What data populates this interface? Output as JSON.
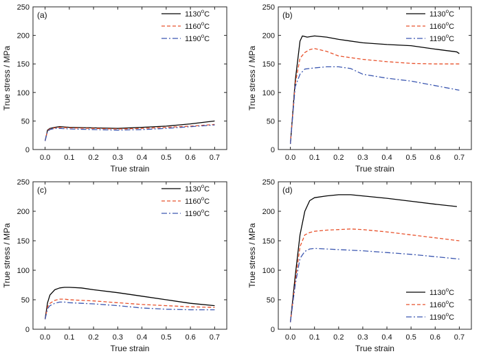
{
  "colors": {
    "s1130": "#000000",
    "s1160": "#e8502a",
    "s1190": "#3a56b0",
    "axis": "#222222"
  },
  "chart_data": [
    {
      "type": "line",
      "panel_label": "(a)",
      "xlabel": "True strain",
      "ylabel": "True stress / MPa",
      "xlim": [
        -0.05,
        0.75
      ],
      "ylim": [
        0,
        250
      ],
      "xticks": [
        0.0,
        0.1,
        0.2,
        0.3,
        0.4,
        0.5,
        0.6,
        0.7
      ],
      "xtick_labels": [
        "0.0",
        "0.1",
        "0.2",
        "0.3",
        "0.4",
        "0.5",
        "0.6",
        "0.7"
      ],
      "yticks": [
        0,
        50,
        100,
        150,
        200,
        250
      ],
      "ytick_labels": [
        "0",
        "50",
        "100",
        "150",
        "200",
        "250"
      ],
      "legend": "top-right",
      "grid": false,
      "series": [
        {
          "name": "1130°C",
          "x": [
            0.0,
            0.01,
            0.02,
            0.04,
            0.06,
            0.1,
            0.2,
            0.3,
            0.4,
            0.5,
            0.6,
            0.7
          ],
          "y": [
            15,
            34,
            37,
            39,
            40,
            39,
            38,
            37,
            39,
            41,
            45,
            50
          ]
        },
        {
          "name": "1160°C",
          "x": [
            0.0,
            0.01,
            0.02,
            0.04,
            0.06,
            0.1,
            0.2,
            0.3,
            0.4,
            0.5,
            0.6,
            0.7
          ],
          "y": [
            15,
            33,
            36,
            38,
            39,
            38,
            37,
            36,
            37,
            39,
            41,
            44
          ]
        },
        {
          "name": "1190°C",
          "x": [
            0.0,
            0.01,
            0.02,
            0.04,
            0.06,
            0.1,
            0.2,
            0.3,
            0.4,
            0.5,
            0.6,
            0.7
          ],
          "y": [
            15,
            32,
            35,
            37,
            37,
            36,
            35,
            34,
            35,
            37,
            40,
            43
          ]
        }
      ]
    },
    {
      "type": "line",
      "panel_label": "(b)",
      "xlabel": "True strain",
      "ylabel": "True stress / MPa",
      "xlim": [
        -0.05,
        0.75
      ],
      "ylim": [
        0,
        250
      ],
      "xticks": [
        0.0,
        0.1,
        0.2,
        0.3,
        0.4,
        0.5,
        0.6,
        0.7
      ],
      "xtick_labels": [
        "0.0",
        "0.1",
        "0.2",
        "0.3",
        "0.4",
        "0.5",
        "0.6",
        "0.7"
      ],
      "yticks": [
        0,
        50,
        100,
        150,
        200,
        250
      ],
      "ytick_labels": [
        "0",
        "50",
        "100",
        "150",
        "200",
        "250"
      ],
      "legend": "top-right",
      "grid": false,
      "series": [
        {
          "name": "1130°C",
          "x": [
            0.0,
            0.02,
            0.04,
            0.05,
            0.07,
            0.1,
            0.15,
            0.2,
            0.3,
            0.4,
            0.5,
            0.6,
            0.69,
            0.7
          ],
          "y": [
            10,
            120,
            190,
            199,
            197,
            199,
            197,
            193,
            187,
            184,
            182,
            176,
            171,
            168
          ]
        },
        {
          "name": "1160°C",
          "x": [
            0.0,
            0.02,
            0.04,
            0.06,
            0.08,
            0.1,
            0.15,
            0.2,
            0.3,
            0.4,
            0.5,
            0.6,
            0.7
          ],
          "y": [
            10,
            115,
            160,
            170,
            175,
            177,
            172,
            164,
            158,
            154,
            151,
            150,
            150
          ]
        },
        {
          "name": "1190°C",
          "x": [
            0.0,
            0.02,
            0.04,
            0.06,
            0.1,
            0.15,
            0.2,
            0.25,
            0.3,
            0.4,
            0.5,
            0.6,
            0.7
          ],
          "y": [
            10,
            110,
            132,
            141,
            143,
            145,
            145,
            142,
            132,
            125,
            120,
            112,
            104
          ]
        }
      ]
    },
    {
      "type": "line",
      "panel_label": "(c)",
      "xlabel": "True strain",
      "ylabel": "True stress / MPa",
      "xlim": [
        -0.05,
        0.75
      ],
      "ylim": [
        0,
        250
      ],
      "xticks": [
        0.0,
        0.1,
        0.2,
        0.3,
        0.4,
        0.5,
        0.6,
        0.7
      ],
      "xtick_labels": [
        "0.0",
        "0.1",
        "0.2",
        "0.3",
        "0.4",
        "0.5",
        "0.6",
        "0.7"
      ],
      "yticks": [
        0,
        50,
        100,
        150,
        200,
        250
      ],
      "ytick_labels": [
        "0",
        "50",
        "100",
        "150",
        "200",
        "250"
      ],
      "legend": "top-right",
      "grid": false,
      "series": [
        {
          "name": "1130°C",
          "x": [
            0.0,
            0.01,
            0.02,
            0.04,
            0.06,
            0.08,
            0.1,
            0.15,
            0.2,
            0.3,
            0.4,
            0.5,
            0.6,
            0.7
          ],
          "y": [
            17,
            45,
            58,
            67,
            70,
            71,
            71,
            70,
            67,
            62,
            56,
            50,
            44,
            40
          ]
        },
        {
          "name": "1160°C",
          "x": [
            0.0,
            0.01,
            0.02,
            0.04,
            0.06,
            0.08,
            0.1,
            0.2,
            0.3,
            0.4,
            0.5,
            0.6,
            0.7
          ],
          "y": [
            17,
            38,
            44,
            49,
            51,
            51,
            50,
            48,
            45,
            42,
            40,
            38,
            37
          ]
        },
        {
          "name": "1190°C",
          "x": [
            0.0,
            0.01,
            0.02,
            0.04,
            0.06,
            0.08,
            0.1,
            0.2,
            0.3,
            0.4,
            0.5,
            0.6,
            0.7
          ],
          "y": [
            17,
            35,
            40,
            44,
            46,
            46,
            45,
            43,
            40,
            36,
            34,
            33,
            33
          ]
        }
      ]
    },
    {
      "type": "line",
      "panel_label": "(d)",
      "xlabel": "True strain",
      "ylabel": "True stress / MPa",
      "xlim": [
        -0.05,
        0.75
      ],
      "ylim": [
        0,
        250
      ],
      "xticks": [
        0.0,
        0.1,
        0.2,
        0.3,
        0.4,
        0.5,
        0.6,
        0.7
      ],
      "xtick_labels": [
        "0.0",
        "0.1",
        "0.2",
        "0.3",
        "0.4",
        "0.5",
        "0.6",
        "0.7"
      ],
      "yticks": [
        0,
        50,
        100,
        150,
        200,
        250
      ],
      "ytick_labels": [
        "0",
        "50",
        "100",
        "150",
        "200",
        "250"
      ],
      "legend": "bottom-right",
      "grid": false,
      "series": [
        {
          "name": "1130°C",
          "x": [
            0.0,
            0.02,
            0.04,
            0.06,
            0.08,
            0.1,
            0.15,
            0.2,
            0.25,
            0.3,
            0.4,
            0.5,
            0.6,
            0.69
          ],
          "y": [
            12,
            90,
            160,
            200,
            218,
            223,
            226,
            228,
            228,
            226,
            222,
            217,
            212,
            208
          ]
        },
        {
          "name": "1160°C",
          "x": [
            0.0,
            0.02,
            0.04,
            0.06,
            0.08,
            0.1,
            0.15,
            0.2,
            0.25,
            0.3,
            0.4,
            0.5,
            0.6,
            0.7
          ],
          "y": [
            12,
            80,
            140,
            160,
            164,
            166,
            168,
            169,
            170,
            169,
            165,
            160,
            155,
            150
          ]
        },
        {
          "name": "1190°C",
          "x": [
            0.0,
            0.02,
            0.04,
            0.06,
            0.08,
            0.1,
            0.15,
            0.2,
            0.3,
            0.4,
            0.5,
            0.6,
            0.7
          ],
          "y": [
            12,
            75,
            120,
            132,
            136,
            137,
            136,
            135,
            133,
            130,
            127,
            123,
            119
          ]
        }
      ]
    }
  ]
}
